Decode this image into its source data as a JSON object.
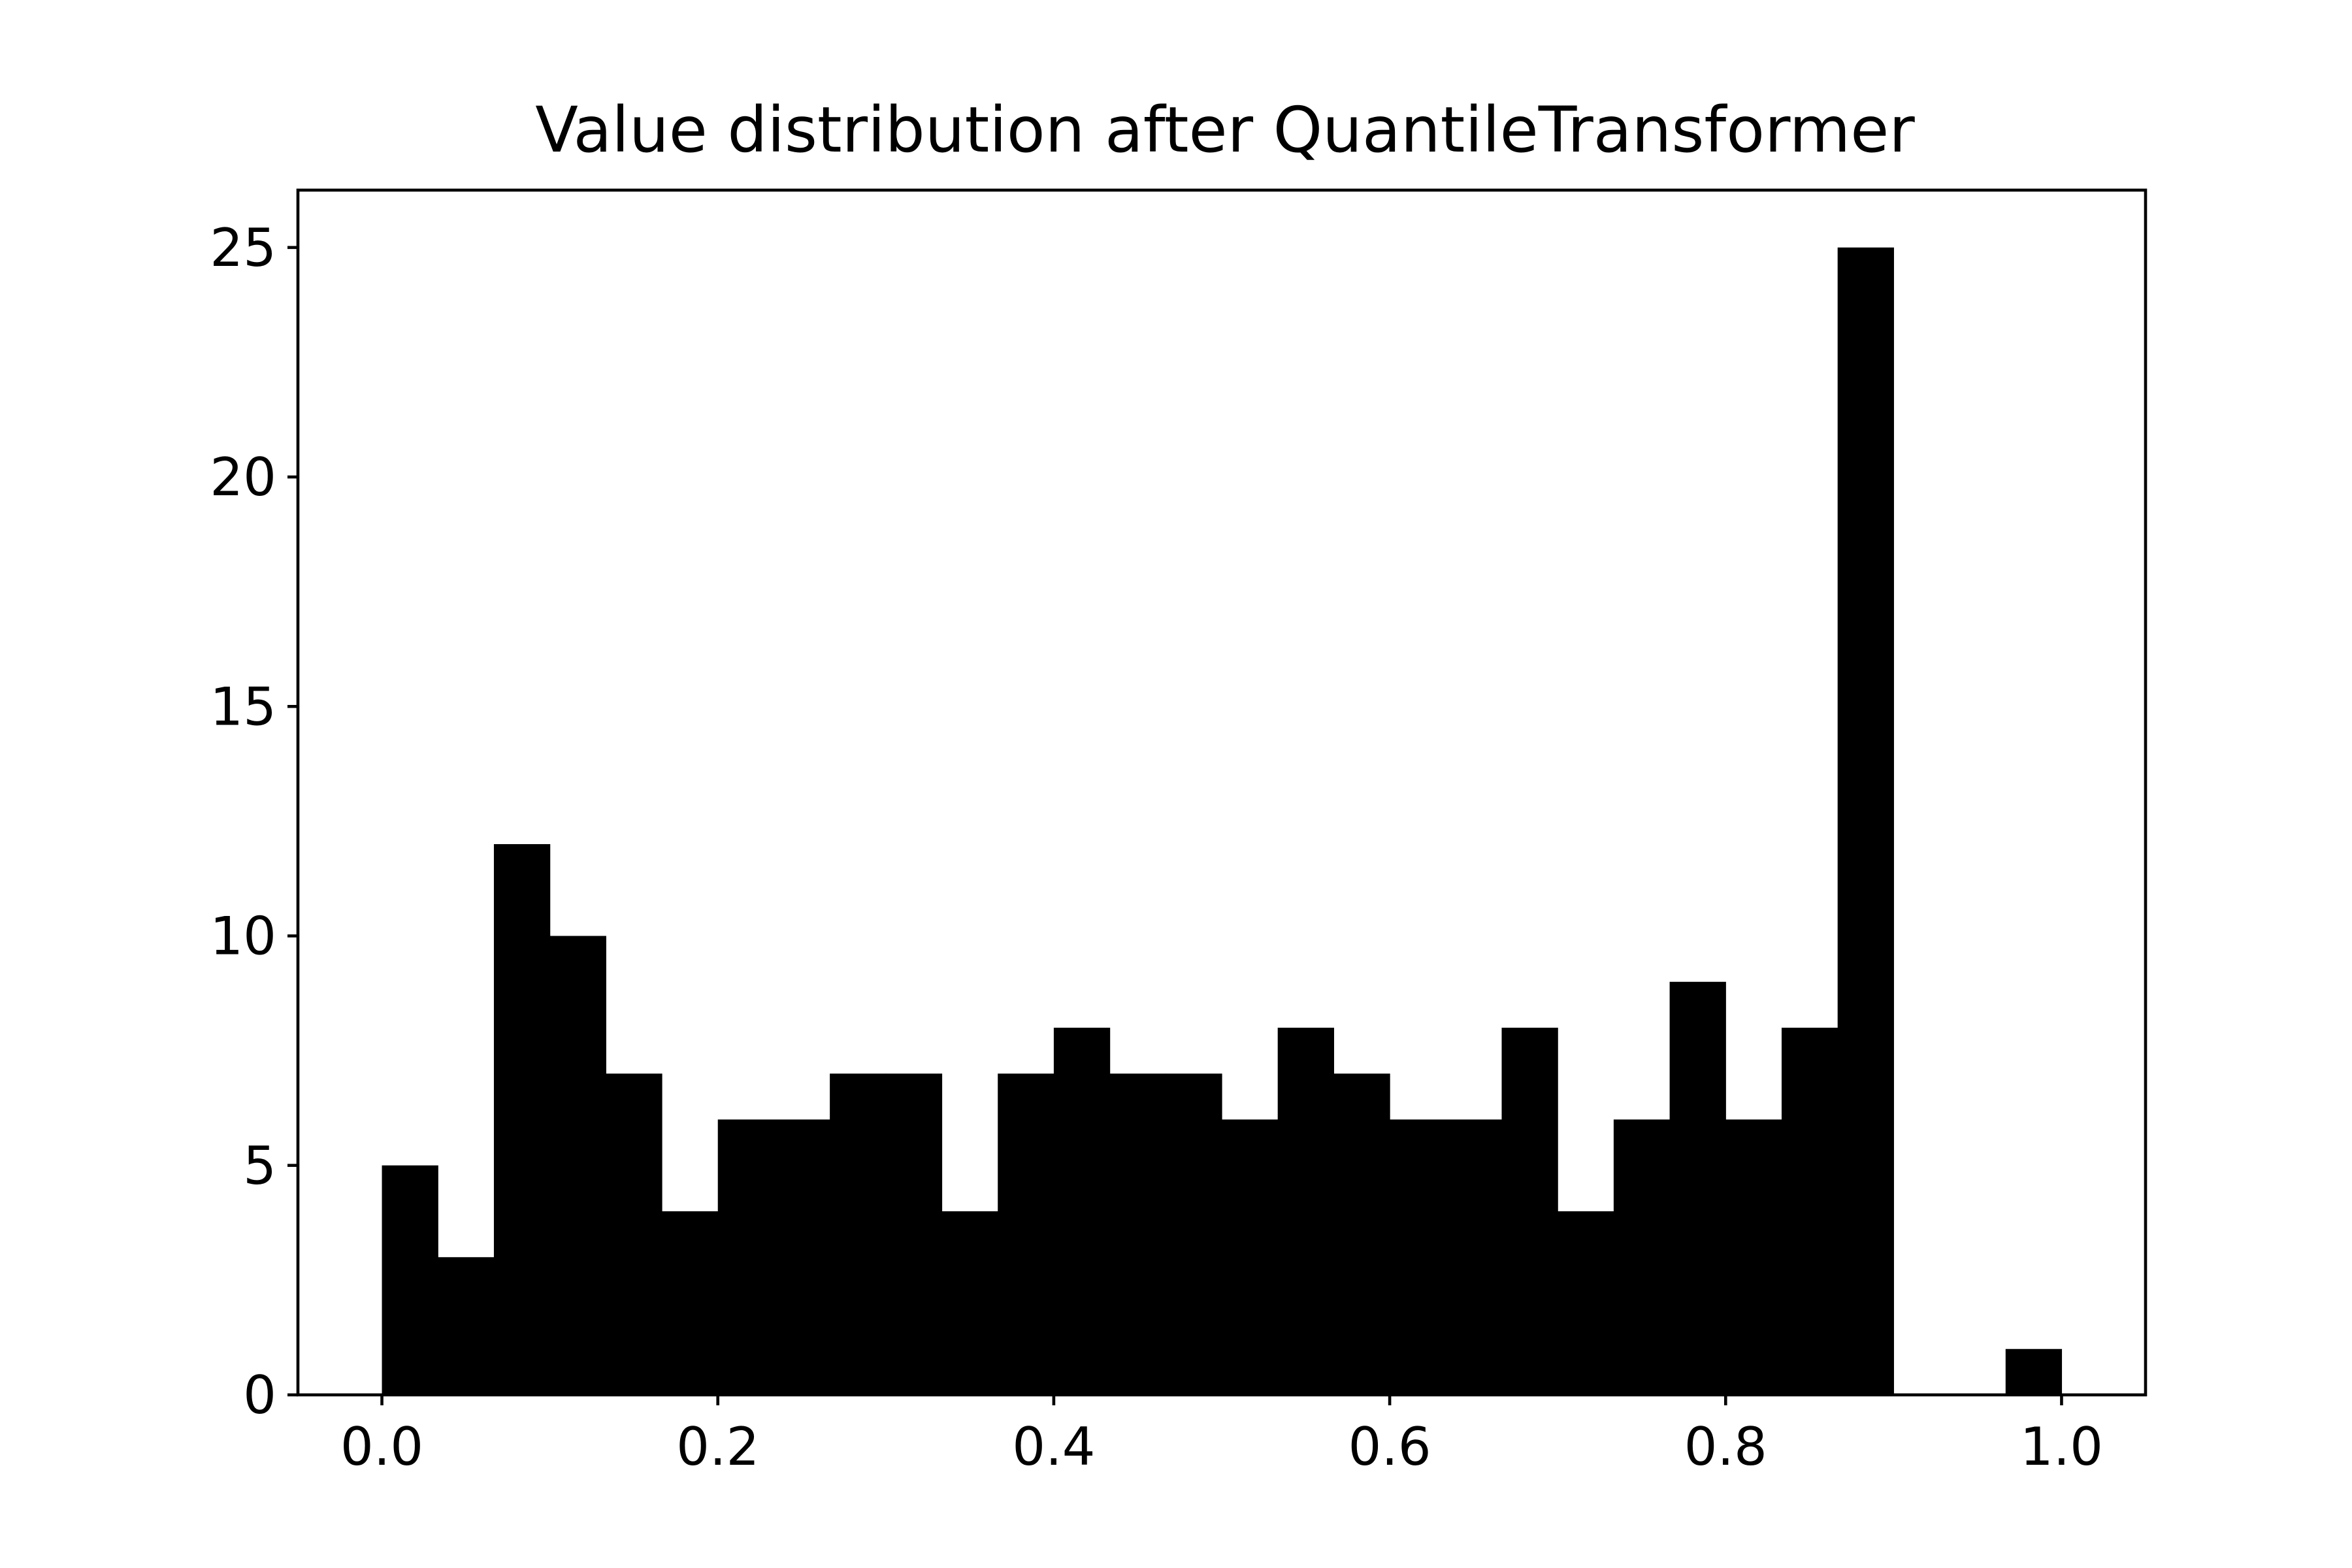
{
  "chart_data": {
    "type": "bar",
    "title": "Value distribution after QuantileTransformer",
    "xlabel": "",
    "ylabel": "",
    "bin_width": 0.03333,
    "bins": [
      {
        "x0": 0.0,
        "count": 5
      },
      {
        "x0": 0.03333,
        "count": 3
      },
      {
        "x0": 0.06667,
        "count": 12
      },
      {
        "x0": 0.1,
        "count": 10
      },
      {
        "x0": 0.13333,
        "count": 7
      },
      {
        "x0": 0.16667,
        "count": 4
      },
      {
        "x0": 0.2,
        "count": 6
      },
      {
        "x0": 0.23333,
        "count": 6
      },
      {
        "x0": 0.26667,
        "count": 7
      },
      {
        "x0": 0.3,
        "count": 7
      },
      {
        "x0": 0.33333,
        "count": 4
      },
      {
        "x0": 0.36667,
        "count": 7
      },
      {
        "x0": 0.4,
        "count": 8
      },
      {
        "x0": 0.43333,
        "count": 7
      },
      {
        "x0": 0.46667,
        "count": 7
      },
      {
        "x0": 0.5,
        "count": 6
      },
      {
        "x0": 0.53333,
        "count": 8
      },
      {
        "x0": 0.56667,
        "count": 7
      },
      {
        "x0": 0.6,
        "count": 6
      },
      {
        "x0": 0.63333,
        "count": 6
      },
      {
        "x0": 0.66667,
        "count": 8
      },
      {
        "x0": 0.7,
        "count": 4
      },
      {
        "x0": 0.73333,
        "count": 6
      },
      {
        "x0": 0.76667,
        "count": 9
      },
      {
        "x0": 0.8,
        "count": 6
      },
      {
        "x0": 0.83333,
        "count": 8
      },
      {
        "x0": 0.86667,
        "count": 25
      },
      {
        "x0": 0.9,
        "count": 0
      },
      {
        "x0": 0.93333,
        "count": 0
      },
      {
        "x0": 0.96667,
        "count": 1
      }
    ],
    "xlim": [
      -0.05,
      1.05
    ],
    "ylim": [
      0,
      26.25
    ],
    "xticks": [
      0.0,
      0.2,
      0.4,
      0.6,
      0.8,
      1.0
    ],
    "xtick_labels": [
      "0.0",
      "0.2",
      "0.4",
      "0.6",
      "0.8",
      "1.0"
    ],
    "yticks": [
      0,
      5,
      10,
      15,
      20,
      25
    ],
    "ytick_labels": [
      "0",
      "5",
      "10",
      "15",
      "20",
      "25"
    ],
    "bar_color": "#000000",
    "grid": false,
    "legend": "none"
  }
}
